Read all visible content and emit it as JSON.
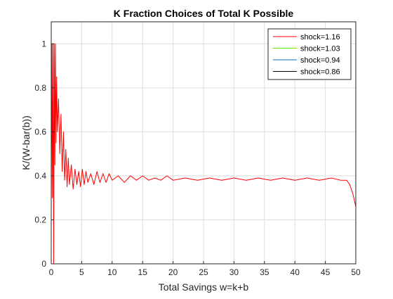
{
  "chart_data": {
    "type": "line",
    "title": "K Fraction Choices of Total K Possible",
    "xlabel": "Total Savings w=k+b",
    "ylabel": "K/(W-bar(b))",
    "xlim": [
      0,
      50
    ],
    "ylim": [
      0,
      1.1
    ],
    "xticks": [
      0,
      5,
      10,
      15,
      20,
      25,
      30,
      35,
      40,
      45,
      50
    ],
    "yticks": [
      0,
      0.2,
      0.4,
      0.6,
      0.8,
      1
    ],
    "xtick_labels": [
      "0",
      "5",
      "10",
      "15",
      "20",
      "25",
      "30",
      "35",
      "40",
      "45",
      "50"
    ],
    "ytick_labels": [
      "0",
      "0.2",
      "0.4",
      "0.6",
      "0.8",
      "1"
    ],
    "grid": true,
    "legend_position": "top-right",
    "series": [
      {
        "name": "shock=1.16",
        "color": "#ff0000",
        "x": [
          0.0,
          0.1,
          0.2,
          0.3,
          0.4,
          0.5,
          0.6,
          0.7,
          0.8,
          0.9,
          1.0,
          1.2,
          1.4,
          1.6,
          1.8,
          2.0,
          2.2,
          2.4,
          2.6,
          2.8,
          3.0,
          3.3,
          3.6,
          3.9,
          4.2,
          4.5,
          4.8,
          5.1,
          5.4,
          5.7,
          6.0,
          6.5,
          7.0,
          7.5,
          8.0,
          8.5,
          9.0,
          9.5,
          10.0,
          11.0,
          12.0,
          13.0,
          14.0,
          15.0,
          16.0,
          17.0,
          18.0,
          19.0,
          20.0,
          22.0,
          24.0,
          26.0,
          28.0,
          30.0,
          32.0,
          34.0,
          36.0,
          38.0,
          40.0,
          42.0,
          44.0,
          46.0,
          47.5,
          48.5,
          49.0,
          49.5,
          50.0
        ],
        "y": [
          0.25,
          1.0,
          0.3,
          1.0,
          0.0,
          1.0,
          0.45,
          1.0,
          0.55,
          0.85,
          0.6,
          0.75,
          0.5,
          0.68,
          0.42,
          0.6,
          0.38,
          0.52,
          0.35,
          0.48,
          0.36,
          0.45,
          0.34,
          0.43,
          0.36,
          0.42,
          0.35,
          0.43,
          0.36,
          0.42,
          0.37,
          0.41,
          0.36,
          0.42,
          0.37,
          0.41,
          0.37,
          0.41,
          0.38,
          0.4,
          0.37,
          0.4,
          0.38,
          0.4,
          0.38,
          0.39,
          0.38,
          0.4,
          0.38,
          0.39,
          0.38,
          0.39,
          0.38,
          0.39,
          0.38,
          0.39,
          0.38,
          0.39,
          0.38,
          0.39,
          0.38,
          0.39,
          0.38,
          0.38,
          0.36,
          0.32,
          0.26
        ]
      },
      {
        "name": "shock=1.03",
        "color": "#66ee00",
        "x": [],
        "y": []
      },
      {
        "name": "shock=0.94",
        "color": "#0072bd",
        "x": [],
        "y": []
      },
      {
        "name": "shock=0.86",
        "color": "#000000",
        "x": [],
        "y": []
      }
    ]
  }
}
